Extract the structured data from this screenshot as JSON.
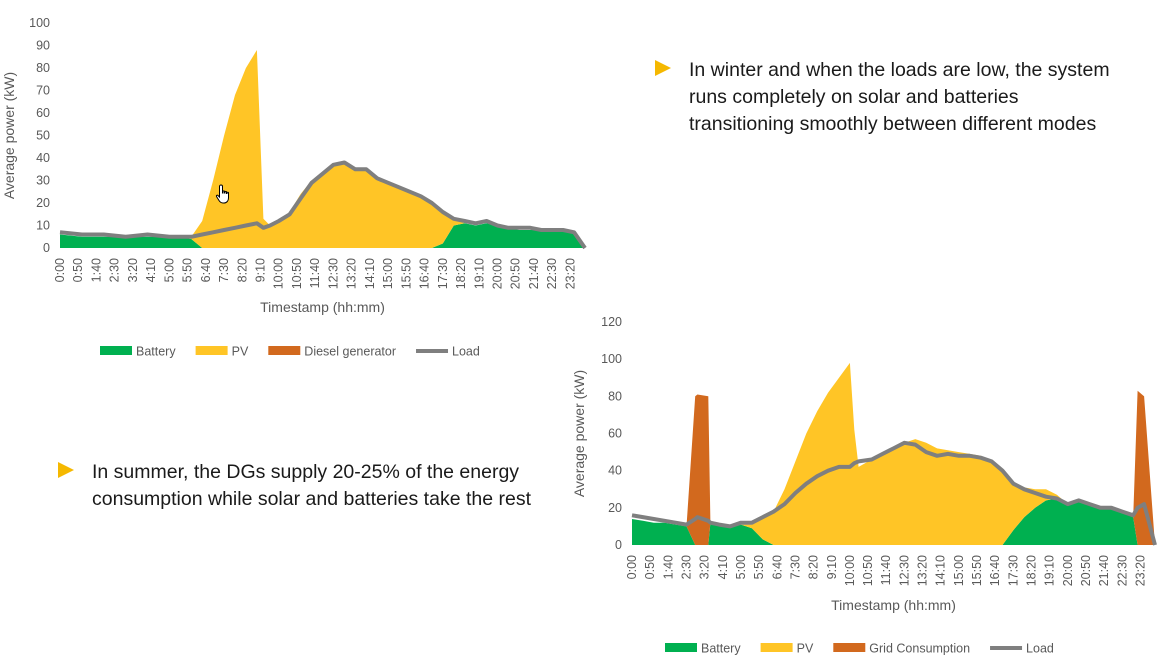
{
  "bullets": {
    "winter": "In winter and when the loads are low, the system runs completely on solar and batteries transitioning smoothly between different modes",
    "summer": "In summer, the DGs supply 20-25% of the energy consumption while solar and batteries take the rest"
  },
  "colors": {
    "battery": "#00b050",
    "pv": "#ffc526",
    "diesel": "#d2691e",
    "grid": "#d2691e",
    "load": "#7f7f7f",
    "bullet": "#f5b800"
  },
  "cursor_icon": "hand-pointer-icon",
  "chart_data": [
    {
      "id": "winter",
      "type": "area",
      "ylabel": "Average power (kW)",
      "xlabel": "Timestamp (hh:mm)",
      "ylim": [
        0,
        100
      ],
      "yticks": [
        0,
        10,
        20,
        30,
        40,
        50,
        60,
        70,
        80,
        90,
        100
      ],
      "xticks": [
        "0:00",
        "0:50",
        "1:40",
        "2:30",
        "3:20",
        "4:10",
        "5:00",
        "5:50",
        "6:40",
        "7:30",
        "8:20",
        "9:10",
        "10:00",
        "10:50",
        "11:40",
        "12:30",
        "13:20",
        "14:10",
        "15:00",
        "15:50",
        "16:40",
        "17:30",
        "18:20",
        "19:10",
        "20:00",
        "20:50",
        "21:40",
        "22:30",
        "23:20"
      ],
      "grid": false,
      "legend": {
        "placement": "bottom",
        "entries": [
          {
            "label": "Battery",
            "key": "battery",
            "kind": "area"
          },
          {
            "label": "PV",
            "key": "pv",
            "kind": "area"
          },
          {
            "label": "Diesel generator",
            "key": "diesel",
            "kind": "area"
          },
          {
            "label": "Load",
            "key": "load",
            "kind": "line"
          }
        ]
      },
      "x_hours": [
        0,
        1,
        2,
        3,
        4,
        5,
        5.5,
        6,
        6.5,
        7,
        7.5,
        8,
        8.5,
        9,
        9.3,
        9.6,
        10,
        10.5,
        11,
        11.5,
        12,
        12.5,
        13,
        13.5,
        14,
        14.5,
        15,
        15.5,
        16,
        16.5,
        17,
        17.5,
        18,
        18.5,
        19,
        19.5,
        20,
        20.5,
        21,
        21.5,
        22,
        22.5,
        23,
        23.5,
        24
      ],
      "series": {
        "battery": [
          6,
          5,
          5,
          5,
          5,
          5,
          5,
          4,
          0,
          0,
          0,
          0,
          0,
          0,
          0,
          0,
          0,
          0,
          0,
          0,
          0,
          0,
          0,
          0,
          0,
          0,
          0,
          0,
          0,
          0,
          0,
          2,
          10,
          11,
          10,
          11,
          10,
          9,
          8,
          8,
          8,
          8,
          8,
          7,
          0
        ],
        "pv": [
          0,
          0,
          0,
          0,
          0,
          0,
          0,
          1,
          12,
          30,
          50,
          68,
          80,
          88,
          13,
          10,
          12,
          16,
          24,
          30,
          33,
          37,
          38,
          35,
          35,
          31,
          29,
          27,
          25,
          23,
          19,
          14,
          3,
          0,
          0,
          0,
          0,
          0,
          0,
          0,
          0,
          0,
          0,
          0,
          0
        ],
        "diesel": [
          0,
          0,
          0,
          0,
          0,
          0,
          0,
          0,
          0,
          0,
          0,
          0,
          0,
          0,
          0,
          0,
          0,
          0,
          0,
          0,
          0,
          0,
          0,
          0,
          0,
          0,
          0,
          0,
          0,
          0,
          0,
          0,
          0,
          0,
          0,
          0,
          0,
          0,
          0,
          0,
          0,
          0,
          0,
          0,
          0
        ],
        "load": [
          7,
          6,
          6,
          5,
          6,
          5,
          5,
          5,
          6,
          7,
          8,
          9,
          10,
          11,
          9,
          10,
          12,
          15,
          22,
          29,
          33,
          37,
          38,
          35,
          35,
          31,
          29,
          27,
          25,
          23,
          20,
          16,
          13,
          12,
          11,
          12,
          10,
          9,
          9,
          9,
          8,
          8,
          8,
          7,
          0
        ]
      }
    },
    {
      "id": "summer",
      "type": "area",
      "ylabel": "Average power (kW)",
      "xlabel": "Timestamp (hh:mm)",
      "ylim": [
        0,
        120
      ],
      "yticks": [
        0,
        20,
        40,
        60,
        80,
        100,
        120
      ],
      "xticks": [
        "0:00",
        "0:50",
        "1:40",
        "2:30",
        "3:20",
        "4:10",
        "5:00",
        "5:50",
        "6:40",
        "7:30",
        "8:20",
        "9:10",
        "10:00",
        "10:50",
        "11:40",
        "12:30",
        "13:20",
        "14:10",
        "15:00",
        "15:50",
        "16:40",
        "17:30",
        "18:20",
        "19:10",
        "20:00",
        "20:50",
        "21:40",
        "22:30",
        "23:20"
      ],
      "grid": false,
      "legend": {
        "placement": "bottom",
        "entries": [
          {
            "label": "Battery",
            "key": "battery",
            "kind": "area"
          },
          {
            "label": "PV",
            "key": "pv",
            "kind": "area"
          },
          {
            "label": "Grid Consumption",
            "key": "grid",
            "kind": "area"
          },
          {
            "label": "Load",
            "key": "load",
            "kind": "line"
          }
        ]
      },
      "x_hours": [
        0,
        0.5,
        1,
        1.5,
        2,
        2.5,
        2.9,
        3,
        3.5,
        3.6,
        4,
        4.5,
        5,
        5.5,
        6,
        6.5,
        7,
        7.5,
        8,
        8.5,
        9,
        9.5,
        10,
        10.2,
        10.4,
        11,
        11.5,
        12,
        12.5,
        13,
        13.5,
        14,
        14.5,
        15,
        15.5,
        16,
        16.5,
        17,
        17.5,
        18,
        18.5,
        19,
        19.5,
        20,
        20.5,
        21,
        21.5,
        22,
        22.5,
        23,
        23.2,
        23.5,
        24
      ],
      "series": {
        "battery": [
          14,
          13,
          12,
          12,
          11,
          10,
          0,
          0,
          0,
          12,
          11,
          10,
          11,
          9,
          3,
          0,
          0,
          0,
          0,
          0,
          0,
          0,
          0,
          0,
          0,
          0,
          0,
          0,
          0,
          0,
          0,
          0,
          0,
          0,
          0,
          0,
          0,
          0,
          8,
          15,
          20,
          24,
          25,
          22,
          24,
          22,
          20,
          20,
          18,
          15,
          0,
          0,
          0
        ],
        "pv": [
          0,
          0,
          0,
          0,
          0,
          0,
          0,
          0,
          0,
          0,
          0,
          0,
          0,
          2,
          12,
          18,
          30,
          45,
          60,
          72,
          82,
          90,
          98,
          62,
          42,
          46,
          49,
          52,
          55,
          57,
          55,
          52,
          51,
          50,
          49,
          48,
          44,
          40,
          26,
          16,
          10,
          6,
          2,
          0,
          0,
          0,
          0,
          0,
          0,
          0,
          0,
          0,
          0
        ],
        "grid": [
          0,
          0,
          0,
          0,
          0,
          0,
          80,
          81,
          80,
          0,
          0,
          0,
          0,
          0,
          0,
          0,
          0,
          0,
          0,
          0,
          0,
          0,
          0,
          0,
          0,
          0,
          0,
          0,
          0,
          0,
          0,
          0,
          0,
          0,
          0,
          0,
          0,
          0,
          0,
          0,
          0,
          0,
          0,
          0,
          0,
          0,
          0,
          0,
          0,
          0,
          83,
          80,
          0
        ],
        "load": [
          16,
          15,
          14,
          13,
          12,
          11,
          14,
          15,
          13,
          12,
          11,
          10,
          12,
          12,
          15,
          18,
          22,
          28,
          33,
          37,
          40,
          42,
          42,
          44,
          45,
          46,
          49,
          52,
          55,
          54,
          50,
          48,
          49,
          48,
          48,
          47,
          45,
          40,
          33,
          30,
          28,
          26,
          25,
          22,
          24,
          22,
          20,
          20,
          18,
          16,
          20,
          22,
          0
        ]
      }
    }
  ]
}
